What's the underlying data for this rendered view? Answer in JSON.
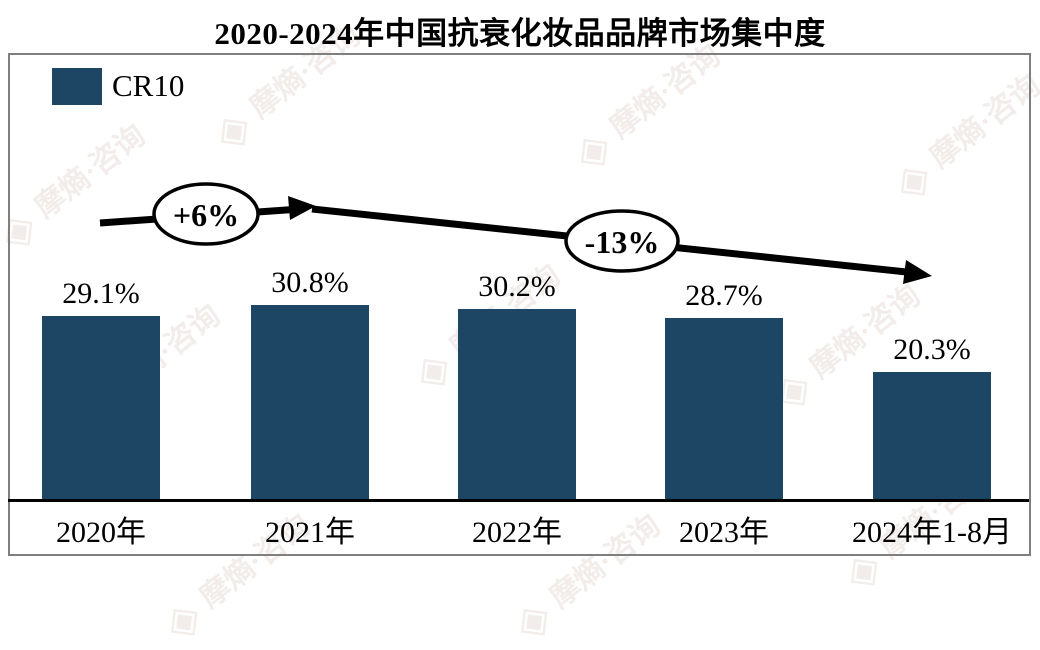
{
  "title": "2020-2024年中国抗衰化妆品品牌市场集中度",
  "legend": {
    "label": "CR10",
    "swatch_color": "#1c4664"
  },
  "chart_data": {
    "type": "bar",
    "title": "2020-2024年中国抗衰化妆品品牌市场集中度",
    "series_name": "CR10",
    "categories": [
      "2020年",
      "2021年",
      "2022年",
      "2023年",
      "2024年1-8月"
    ],
    "values": [
      29.1,
      30.8,
      30.2,
      28.7,
      20.3
    ],
    "value_labels": [
      "29.1%",
      "30.8%",
      "30.2%",
      "28.7%",
      "20.3%"
    ],
    "bar_color": "#1c4664",
    "ylim": [
      0,
      48
    ],
    "grid": false,
    "legend_position": "top-left",
    "annotations": [
      {
        "label": "+6%",
        "between": [
          "2020年",
          "2021年"
        ]
      },
      {
        "label": "-13%",
        "between": [
          "2021年",
          "2024年1-8月"
        ]
      }
    ]
  },
  "watermark": {
    "logo": "◈",
    "text": "摩熵·咨询"
  }
}
